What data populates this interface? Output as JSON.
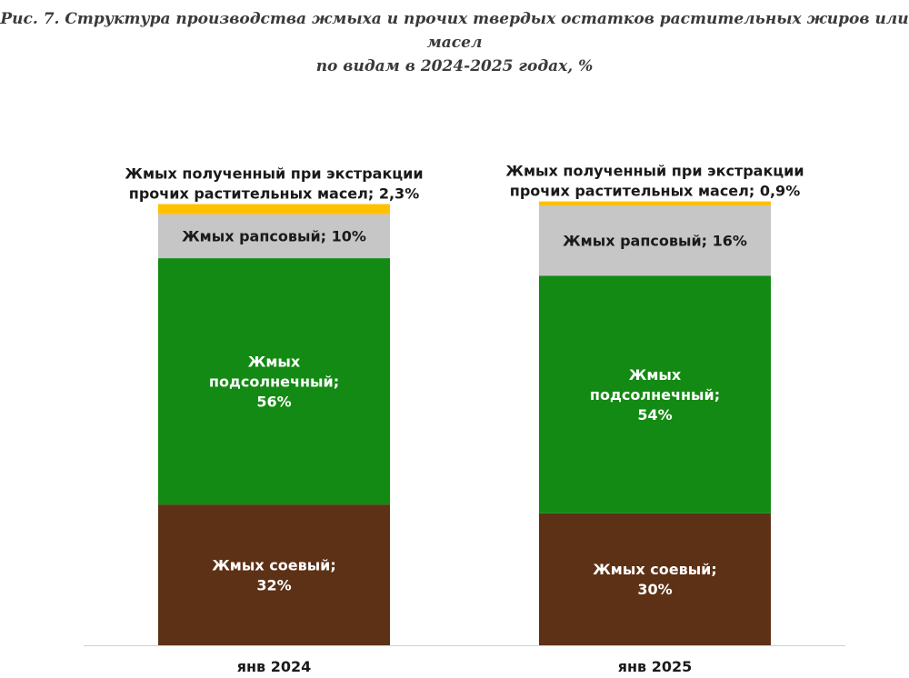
{
  "title": {
    "line1": "Рис. 7. Структура производства жмыха и прочих твердых остатков растительных жиров или масел",
    "line2": "по видам в 2024-2025 годах, %"
  },
  "chart_data": {
    "type": "bar",
    "stacked": true,
    "percent": true,
    "categories": [
      "янв 2024",
      "янв 2025"
    ],
    "series": [
      {
        "name": "Жмых соевый",
        "values": [
          32,
          30
        ],
        "color": "#5d3115",
        "text_color": "#ffffff",
        "labels": [
          [
            "Жмых соевый;",
            "32%"
          ],
          [
            "Жмых соевый;",
            "30%"
          ]
        ]
      },
      {
        "name": "Жмых подсолнечный",
        "values": [
          56,
          54
        ],
        "color": "#138a13",
        "text_color": "#ffffff",
        "labels": [
          [
            "Жмых",
            "подсолнечный;",
            "56%"
          ],
          [
            "Жмых",
            "подсолнечный;",
            "54%"
          ]
        ]
      },
      {
        "name": "Жмых рапсовый",
        "values": [
          10,
          16
        ],
        "color": "#c6c6c6",
        "text_color": "#1a1a1a",
        "labels": [
          [
            "Жмых рапсовый; 10%"
          ],
          [
            "Жмых рапсовый; 16%"
          ]
        ]
      },
      {
        "name": "Жмых полученный при экстракции прочих растительных масел",
        "values": [
          2.3,
          0.9
        ],
        "color": "#ffc000",
        "text_color": "#1a1a1a",
        "labels": [
          [
            "Жмых полученный при экстракции",
            "прочих растительных масел; 2,3%"
          ],
          [
            "Жмых полученный при экстракции",
            "прочих растительных масел; 0,9%"
          ]
        ]
      }
    ],
    "ylim": [
      0,
      100
    ],
    "legend": "none",
    "grid": false
  }
}
